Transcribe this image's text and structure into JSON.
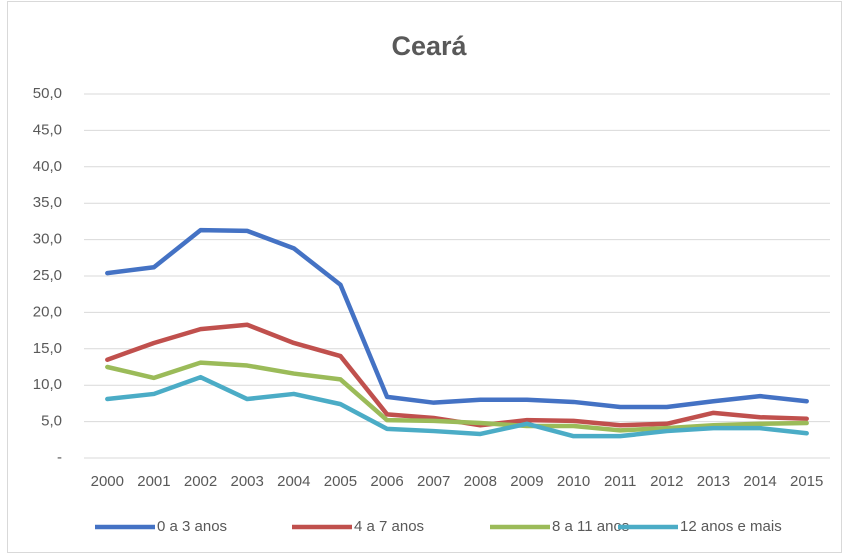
{
  "chart_data": {
    "type": "line",
    "title": "Ceará",
    "categories": [
      "2000",
      "2001",
      "2002",
      "2003",
      "2004",
      "2005",
      "2006",
      "2007",
      "2008",
      "2009",
      "2010",
      "2011",
      "2012",
      "2013",
      "2014",
      "2015"
    ],
    "series": [
      {
        "name": "0 a 3 anos",
        "color": "#4472c4",
        "values": [
          25.4,
          26.2,
          31.3,
          31.2,
          28.8,
          23.8,
          8.4,
          7.6,
          8.0,
          8.0,
          7.7,
          7.0,
          7.0,
          7.8,
          8.5,
          7.8
        ]
      },
      {
        "name": "4 a 7 anos",
        "color": "#c0504d",
        "values": [
          13.5,
          15.8,
          17.7,
          18.3,
          15.8,
          14.0,
          6.0,
          5.5,
          4.5,
          5.2,
          5.1,
          4.5,
          4.7,
          6.2,
          5.6,
          5.4
        ]
      },
      {
        "name": "8 a 11 anos",
        "color": "#9bbb59",
        "values": [
          12.5,
          11.0,
          13.1,
          12.7,
          11.6,
          10.8,
          5.2,
          5.1,
          4.8,
          4.4,
          4.4,
          3.8,
          4.1,
          4.5,
          4.7,
          4.8
        ]
      },
      {
        "name": "12 anos e mais",
        "color": "#4bacc6",
        "values": [
          8.1,
          8.8,
          11.1,
          8.1,
          8.8,
          7.4,
          4.0,
          3.7,
          3.3,
          4.7,
          3.0,
          3.0,
          3.7,
          4.1,
          4.1,
          3.4
        ]
      }
    ],
    "ylim": [
      0,
      50
    ],
    "yticks": [
      {
        "value": 0,
        "label": "-"
      },
      {
        "value": 5,
        "label": "5,0"
      },
      {
        "value": 10,
        "label": "10,0"
      },
      {
        "value": 15,
        "label": "15,0"
      },
      {
        "value": 20,
        "label": "20,0"
      },
      {
        "value": 25,
        "label": "25,0"
      },
      {
        "value": 30,
        "label": "30,0"
      },
      {
        "value": 35,
        "label": "35,0"
      },
      {
        "value": 40,
        "label": "40,0"
      },
      {
        "value": 45,
        "label": "45,0"
      },
      {
        "value": 50,
        "label": "50,0"
      }
    ],
    "grid": true,
    "legend": "bottom"
  }
}
